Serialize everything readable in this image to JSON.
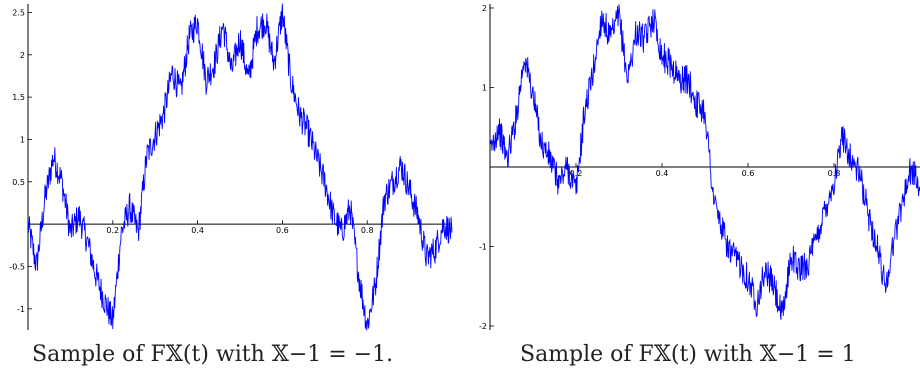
{
  "captions": {
    "left": "Sample of F𝕏(t) with 𝕏−1 = −1.",
    "right": "Sample of F𝕏(t) with 𝕏−1 = 1"
  },
  "colors": {
    "series": "#0000ff",
    "axis": "#000000"
  },
  "chart_data": [
    {
      "type": "line",
      "title": "",
      "xlabel": "",
      "ylabel": "",
      "xlim": [
        0,
        1
      ],
      "ylim": [
        -1.25,
        2.6
      ],
      "xticks": [
        0.2,
        0.4,
        0.6,
        0.8
      ],
      "xtick_labels": [
        "0.2",
        "0.4",
        "0.6",
        "0.8"
      ],
      "yticks": [
        -1,
        -0.5,
        0.5,
        1,
        1.5,
        2,
        2.5
      ],
      "ytick_labels": [
        "-1",
        "-0.5",
        "0.5",
        "1",
        "1.5",
        "2",
        "2.5"
      ],
      "grid": false,
      "series": [
        {
          "x": [
            0,
            0.02,
            0.04,
            0.06,
            0.08,
            0.1,
            0.12,
            0.14,
            0.16,
            0.18,
            0.2,
            0.22,
            0.24,
            0.26,
            0.28,
            0.3,
            0.32,
            0.34,
            0.36,
            0.38,
            0.4,
            0.42,
            0.44,
            0.46,
            0.48,
            0.5,
            0.52,
            0.54,
            0.56,
            0.58,
            0.6,
            0.62,
            0.64,
            0.66,
            0.68,
            0.7,
            0.72,
            0.74,
            0.76,
            0.78,
            0.8,
            0.82,
            0.84,
            0.86,
            0.88,
            0.9,
            0.92,
            0.94,
            0.96,
            0.98,
            1.0
          ],
          "y": [
            0.0,
            -0.5,
            0.3,
            0.8,
            0.5,
            -0.1,
            0.1,
            -0.2,
            -0.6,
            -0.9,
            -1.15,
            -0.1,
            0.2,
            -0.1,
            0.8,
            1.05,
            1.3,
            1.8,
            1.55,
            2.2,
            2.4,
            1.7,
            1.9,
            2.35,
            1.8,
            2.2,
            1.7,
            2.3,
            2.4,
            1.9,
            2.5,
            1.7,
            1.3,
            1.1,
            0.8,
            0.5,
            0.1,
            -0.1,
            0.2,
            -0.6,
            -1.2,
            -0.7,
            0.3,
            0.5,
            0.7,
            0.4,
            0.1,
            -0.4,
            -0.3,
            0.0,
            -0.1
          ]
        }
      ]
    },
    {
      "type": "line",
      "title": "",
      "xlabel": "",
      "ylabel": "",
      "xlim": [
        0,
        1
      ],
      "ylim": [
        -2.05,
        2.05
      ],
      "xticks": [
        0.2,
        0.4,
        0.6,
        0.8
      ],
      "xtick_labels": [
        "0.2",
        "0.4",
        "0.6",
        "0.8"
      ],
      "yticks": [
        -2,
        -1,
        1,
        2
      ],
      "ytick_labels": [
        "-2",
        "-1",
        "1",
        "2"
      ],
      "grid": false,
      "series": [
        {
          "x": [
            0,
            0.02,
            0.04,
            0.06,
            0.08,
            0.1,
            0.12,
            0.14,
            0.16,
            0.18,
            0.2,
            0.22,
            0.24,
            0.26,
            0.28,
            0.3,
            0.32,
            0.34,
            0.36,
            0.38,
            0.4,
            0.42,
            0.44,
            0.46,
            0.48,
            0.5,
            0.52,
            0.54,
            0.56,
            0.58,
            0.6,
            0.62,
            0.64,
            0.66,
            0.68,
            0.7,
            0.72,
            0.74,
            0.76,
            0.78,
            0.8,
            0.82,
            0.84,
            0.86,
            0.88,
            0.9,
            0.92,
            0.94,
            0.96,
            0.98,
            1.0
          ],
          "y": [
            0.2,
            0.5,
            0.1,
            0.6,
            1.4,
            0.9,
            0.3,
            0.1,
            -0.2,
            0.0,
            -0.3,
            0.7,
            1.2,
            1.9,
            1.6,
            1.9,
            1.1,
            1.7,
            1.6,
            1.9,
            1.4,
            1.3,
            1.1,
            1.1,
            0.8,
            0.7,
            -0.4,
            -0.8,
            -1.1,
            -1.2,
            -1.4,
            -1.7,
            -1.3,
            -1.5,
            -1.9,
            -1.1,
            -1.3,
            -1.2,
            -0.9,
            -0.5,
            -0.2,
            0.4,
            0.1,
            -0.1,
            -0.6,
            -1.0,
            -1.5,
            -0.9,
            -0.4,
            0.0,
            -0.3
          ]
        }
      ]
    }
  ]
}
